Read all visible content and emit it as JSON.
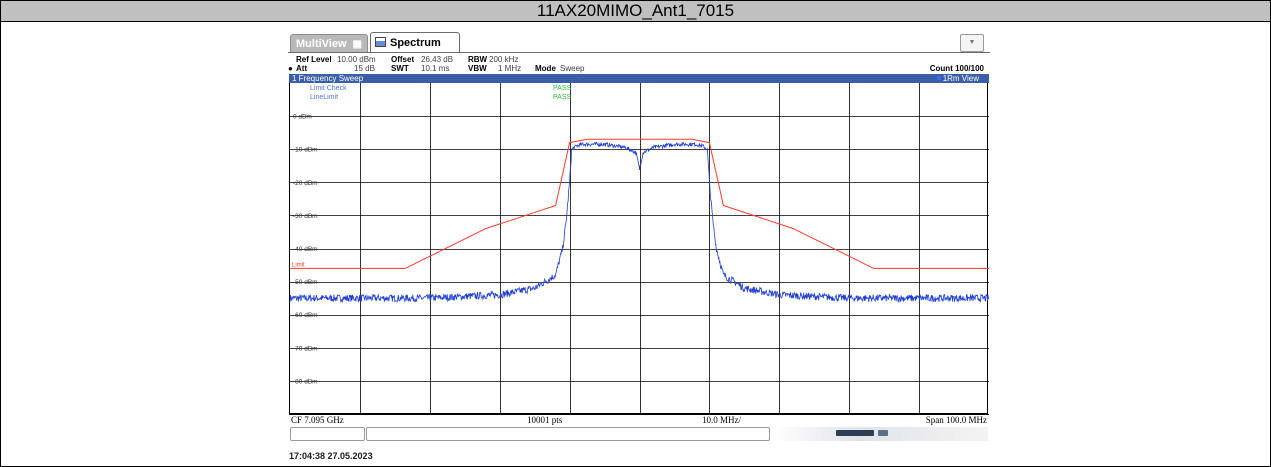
{
  "title": "11AX20MIMO_Ant1_7015",
  "tabs": {
    "multiview_label": "MultiView",
    "spectrum_label": "Spectrum",
    "dropdown_icon": "chevron-down-icon"
  },
  "settings": {
    "ref_level_label": "Ref Level",
    "ref_level_value": "10.00 dBm",
    "att_label": "Att",
    "att_value": "15 dB",
    "offset_label": "Offset",
    "offset_value": "26.43 dB",
    "swt_label": "SWT",
    "swt_value": "10.1 ms",
    "rbw_label": "RBW",
    "rbw_value": "200 kHz",
    "vbw_label": "VBW",
    "vbw_value": "1 MHz",
    "mode_label": "Mode",
    "mode_value": "Sweep",
    "count": "Count 100/100"
  },
  "sweep": {
    "label": "1 Frequency Sweep",
    "trace_label": "1Rm View"
  },
  "limit_check": {
    "label": "Limit Check",
    "value": "PASS",
    "line_label": "LineLimit",
    "line_value": "PASS",
    "limit_tag": "Limit"
  },
  "footer": {
    "cf": "CF 7.095 GHz",
    "pts": "10001 pts",
    "div": "10.0 MHz/",
    "span": "Span 100.0 MHz"
  },
  "timestamp": "17:04:38  27.05.2023",
  "colors": {
    "trace": "#1f3fd4",
    "limit_line": "#ff3b2f",
    "pass_text": "#2ec23a",
    "label_text": "#4a78e0",
    "sweep_bar": "#3a5fa8"
  },
  "chart_data": {
    "type": "line",
    "y_unit": "dBm",
    "y_ticks": [
      "0 dBm",
      "-10 dBm",
      "-20 dBm",
      "-30 dBm",
      "-40 dBm",
      "-50 dBm",
      "-60 dBm",
      "-70 dBm",
      "-80 dBm"
    ],
    "ylim": [
      -90,
      10
    ],
    "x_center_ghz": 7.095,
    "x_span_mhz": 100.0,
    "xlim_mhz_offset": [
      -50,
      50
    ],
    "grid": true,
    "limit_line": {
      "x": [
        -50,
        -33.5,
        -22,
        -12,
        -10,
        -7.5,
        7.5,
        10,
        12,
        22,
        33.5,
        50
      ],
      "y": [
        -46,
        -46,
        -34,
        -27,
        -8,
        -7,
        -7,
        -8,
        -27,
        -34,
        -46,
        -46
      ]
    },
    "trace": {
      "x": [
        -50,
        -40,
        -30,
        -20,
        -15,
        -12,
        -11,
        -10.5,
        -10,
        -9.7,
        -9,
        -8,
        -5,
        -2,
        -0.5,
        0,
        0.5,
        2,
        5,
        8,
        9,
        9.7,
        10,
        10.5,
        11,
        12,
        15,
        20,
        30,
        40,
        50
      ],
      "y": [
        -55,
        -55,
        -55,
        -54,
        -52,
        -48,
        -40,
        -32,
        -20,
        -10,
        -9,
        -8.5,
        -8.5,
        -9.5,
        -11,
        -16,
        -11,
        -9.5,
        -8.5,
        -8.5,
        -9,
        -10,
        -20,
        -32,
        -40,
        -48,
        -52,
        -54,
        -55,
        -55,
        -55
      ]
    }
  }
}
